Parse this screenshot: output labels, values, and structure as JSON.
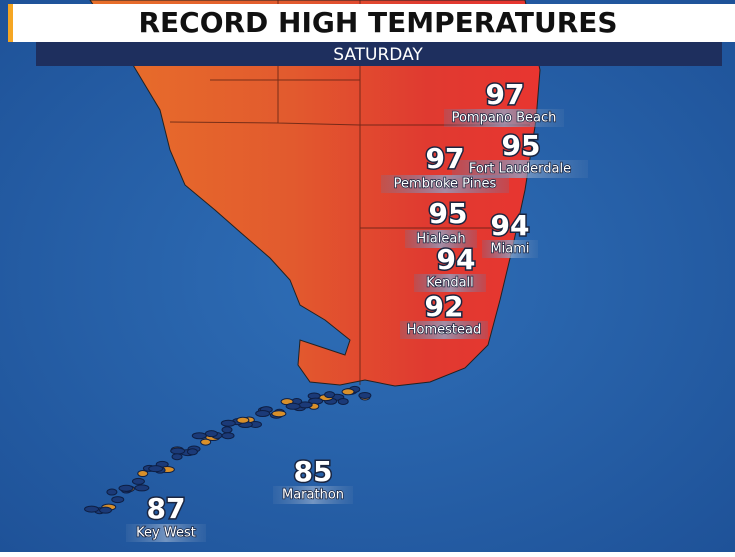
{
  "header": {
    "title": "RECORD HIGH TEMPERATURES",
    "subtitle": "SATURDAY"
  },
  "locations": [
    {
      "temp": "97",
      "name": "Pompano Beach"
    },
    {
      "temp": "95",
      "name": "Fort Lauderdale"
    },
    {
      "temp": "97",
      "name": "Pembroke Pines"
    },
    {
      "temp": "95",
      "name": "Hialeah"
    },
    {
      "temp": "94",
      "name": "Miami"
    },
    {
      "temp": "94",
      "name": "Kendall"
    },
    {
      "temp": "92",
      "name": "Homestead"
    },
    {
      "temp": "85",
      "name": "Marathon"
    },
    {
      "temp": "87",
      "name": "Key West"
    }
  ]
}
